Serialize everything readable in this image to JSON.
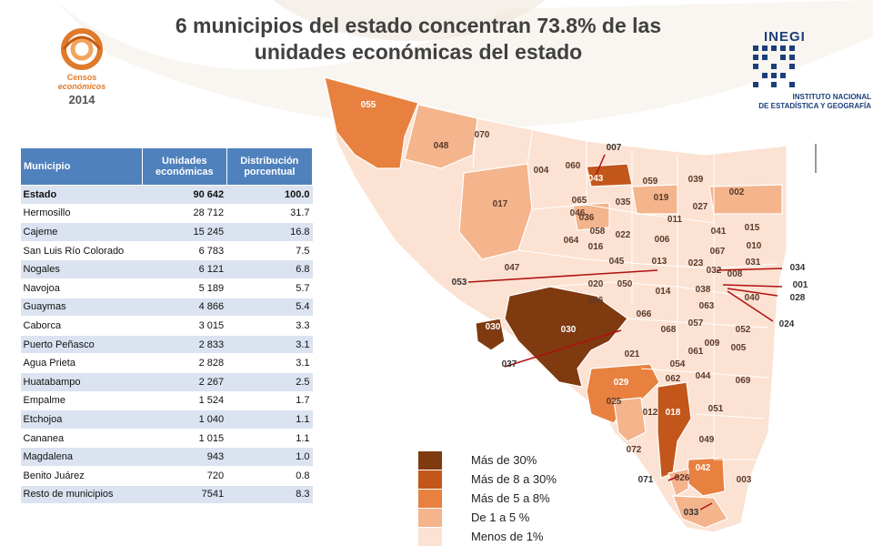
{
  "title": "6 municipios del estado concentran 73.8% de las unidades económicas del estado",
  "logos": {
    "censos": {
      "line1": "Censos",
      "line2": "económicos",
      "line3": "2014"
    },
    "inegi": {
      "word": "INEGI",
      "line1": "INSTITUTO NACIONAL",
      "line2": "DE ESTADÍSTICA Y GEOGRAFÍA"
    }
  },
  "table": {
    "headers": [
      "Municipio",
      "Unidades económicas",
      "Distribución porcentual"
    ],
    "rows": [
      [
        "Estado",
        "90 642",
        "100.0"
      ],
      [
        "Hermosillo",
        "28 712",
        "31.7"
      ],
      [
        "Cajeme",
        "15 245",
        "16.8"
      ],
      [
        "San Luis Río Colorado",
        "6 783",
        "7.5"
      ],
      [
        "Nogales",
        "6 121",
        "6.8"
      ],
      [
        "Navojoa",
        "5 189",
        "5.7"
      ],
      [
        "Guaymas",
        "4 866",
        "5.4"
      ],
      [
        "Caborca",
        "3 015",
        "3.3"
      ],
      [
        "Puerto Peñasco",
        "2 833",
        "3.1"
      ],
      [
        "Agua Prieta",
        "2 828",
        "3.1"
      ],
      [
        "Huatabampo",
        "2 267",
        "2.5"
      ],
      [
        "Empalme",
        "1 524",
        "1.7"
      ],
      [
        "Etchojoa",
        "1 040",
        "1.1"
      ],
      [
        "Cananea",
        "1 015",
        "1.1"
      ],
      [
        "Magdalena",
        "943",
        "1.0"
      ],
      [
        "Benito Juárez",
        "720",
        "0.8"
      ],
      [
        "Resto de municipios",
        "7541",
        "8.3"
      ]
    ]
  },
  "legend": [
    {
      "label": "Más de 30%",
      "color": "#7f3a10"
    },
    {
      "label": "Más de 8 a 30%",
      "color": "#c3561a"
    },
    {
      "label": "Más de 5 a 8%",
      "color": "#e8813f"
    },
    {
      "label": "De 1 a 5 %",
      "color": "#f4b48c"
    },
    {
      "label": "Menos de 1%",
      "color": "#fbe2d3"
    }
  ],
  "map": {
    "colors": {
      "low": "#fbe2d3",
      "mid": "#f4b48c",
      "high": "#e8813f",
      "vhigh": "#c3561a",
      "top": "#7f3a10",
      "border": "#ffffff",
      "arrow": "#b01010"
    },
    "labels": [
      "055",
      "070",
      "048",
      "004",
      "060",
      "007",
      "043",
      "059",
      "039",
      "002",
      "065",
      "035",
      "019",
      "027",
      "017",
      "046",
      "036",
      "011",
      "041",
      "015",
      "058",
      "022",
      "006",
      "064",
      "016",
      "067",
      "010",
      "045",
      "013",
      "023",
      "032",
      "031",
      "034",
      "008",
      "047",
      "053",
      "020",
      "050",
      "014",
      "038",
      "001",
      "028",
      "056",
      "040",
      "063",
      "030",
      "066",
      "057",
      "052",
      "024",
      "068",
      "009",
      "005",
      "037",
      "021",
      "061",
      "054",
      "044",
      "069",
      "029",
      "062",
      "025",
      "012",
      "018",
      "051",
      "049",
      "072",
      "042",
      "026",
      "003",
      "071",
      "033"
    ]
  }
}
